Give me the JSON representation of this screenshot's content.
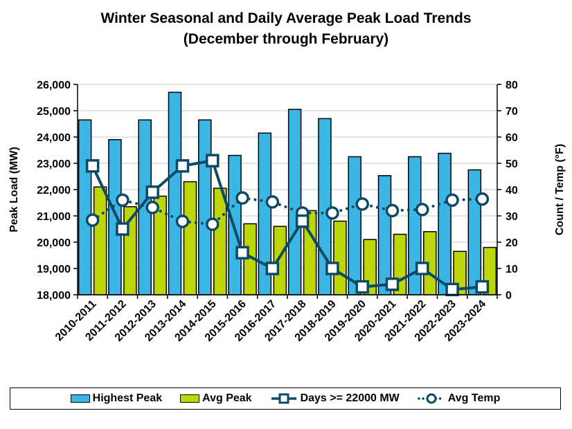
{
  "chart_data": {
    "type": "bar",
    "title": "Winter Seasonal and Daily Average Peak Load Trends",
    "subtitle": "(December through February)",
    "categories": [
      "2010-2011",
      "2011-2012",
      "2012-2013",
      "2013-2014",
      "2014-2015",
      "2015-2016",
      "2016-2017",
      "2017-2018",
      "2018-2019",
      "2019-2020",
      "2020-2021",
      "2021-2022",
      "2022-2023",
      "2023-2024"
    ],
    "ylabel": "Peak Load (MW)",
    "y2label": "Count / Temp (°F)",
    "ylim": [
      18000,
      26000
    ],
    "y2lim": [
      0,
      80
    ],
    "yticks": [
      "18,000",
      "19,000",
      "20,000",
      "21,000",
      "22,000",
      "23,000",
      "24,000",
      "25,000",
      "26,000"
    ],
    "y2ticks": [
      "0",
      "10",
      "20",
      "30",
      "40",
      "50",
      "60",
      "70",
      "80"
    ],
    "grid": true,
    "legend_position": "bottom",
    "series": [
      {
        "name": "Highest Peak",
        "kind": "bar",
        "axis": "left",
        "color": "#3bb5e3",
        "values": [
          24650,
          23900,
          24650,
          25700,
          24650,
          23300,
          24150,
          25050,
          24700,
          23250,
          22530,
          23250,
          23380,
          22750
        ]
      },
      {
        "name": "Avg Peak",
        "kind": "bar",
        "axis": "left",
        "color": "#bcd60a",
        "values": [
          22100,
          21350,
          21750,
          22300,
          22050,
          20700,
          20600,
          21200,
          20800,
          20100,
          20300,
          20400,
          19650,
          19800
        ]
      },
      {
        "name": "Days >= 22000 MW",
        "kind": "line",
        "axis": "right",
        "color": "#0b4a66",
        "marker": "square",
        "line_style": "solid",
        "values": [
          49,
          25,
          39,
          49,
          51,
          16,
          10,
          28,
          10,
          3,
          4,
          10,
          2,
          3
        ]
      },
      {
        "name": "Avg Temp",
        "kind": "line",
        "axis": "right",
        "color": "#0b4a66",
        "marker": "circle",
        "line_style": "dotted",
        "values": [
          28.4,
          36.0,
          33.2,
          27.9,
          26.8,
          36.8,
          35.3,
          31.1,
          31.1,
          34.5,
          32.0,
          32.4,
          36.0,
          36.4
        ]
      }
    ]
  }
}
